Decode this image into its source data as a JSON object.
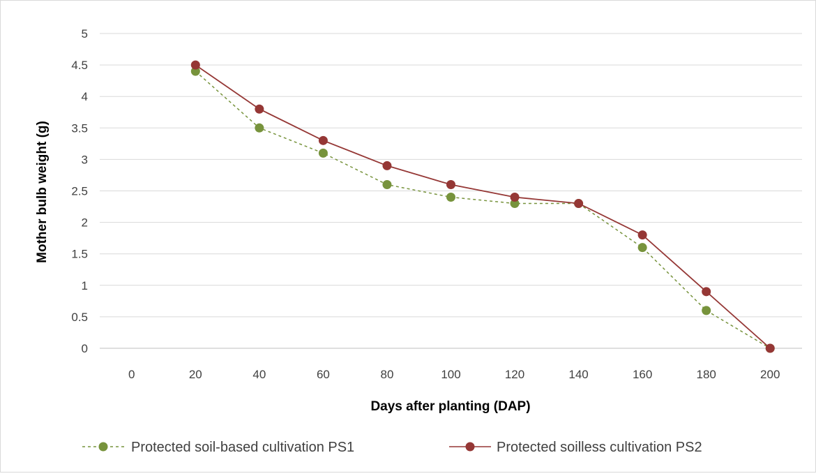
{
  "chart_data": {
    "type": "line",
    "title": "",
    "xlabel": "Days after planting (DAP)",
    "ylabel": "Mother bulb weight (g)",
    "x": [
      0,
      20,
      40,
      60,
      80,
      100,
      120,
      140,
      160,
      180,
      200
    ],
    "ylim": [
      0,
      5
    ],
    "yticks": [
      "0",
      "0.5",
      "1",
      "1.5",
      "2",
      "2.5",
      "3",
      "3.5",
      "4",
      "4.5",
      "5"
    ],
    "grid": true,
    "legend_position": "bottom",
    "series": [
      {
        "name": "Protected soil-based cultivation PS1",
        "x": [
          20,
          40,
          60,
          80,
          100,
          120,
          140,
          160,
          180,
          200
        ],
        "values": [
          4.4,
          3.5,
          3.1,
          2.6,
          2.4,
          2.3,
          2.3,
          1.6,
          0.6,
          0.0
        ],
        "color": "#77933C",
        "line_style": "dashed"
      },
      {
        "name": "Protected soilless cultivation PS2",
        "x": [
          20,
          40,
          60,
          80,
          100,
          120,
          140,
          160,
          180,
          200
        ],
        "values": [
          4.5,
          3.8,
          3.3,
          2.9,
          2.6,
          2.4,
          2.3,
          1.8,
          0.9,
          0.0
        ],
        "color": "#953735",
        "line_style": "solid"
      }
    ]
  }
}
